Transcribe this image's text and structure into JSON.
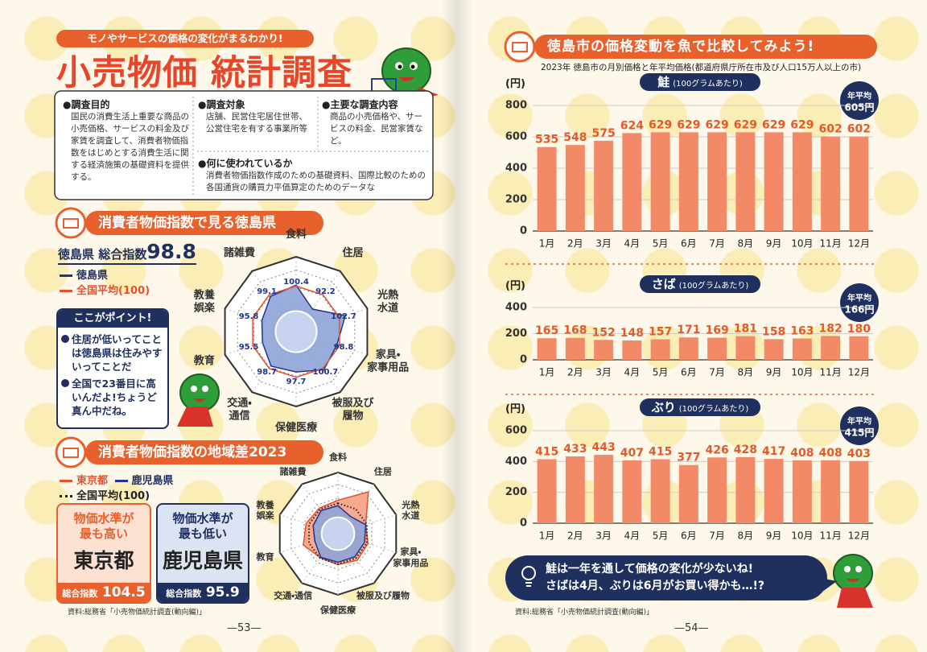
{
  "left": {
    "tagline": "モノやサービスの価格の変化がまるわかり!",
    "title": "小売物価 統計調査",
    "info": [
      {
        "heading": "●調査目的",
        "text": "国民の消費生活上重要な商品の小売価格、サービスの料金及び家賃を調査して、消費者物価指数をはじめとする消費生活に関する経済施策の基礎資料を提供する。"
      },
      {
        "heading": "●調査対象",
        "text": "店舗、民営住宅居住世帯、公営住宅を有する事業所等"
      },
      {
        "heading": "●主要な調査内容",
        "text": "商品の小売価格や、サービスの料金、民営家賃など。"
      },
      {
        "heading": "●何に使われているか",
        "text": "消費者物価指数作成のための基礎資料、国際比較のための各国通貨の購買力平価算定のためのデータな"
      }
    ],
    "section1": "消費者物価指数で見る徳島県",
    "point": {
      "heading": "ここがポイント!",
      "items": [
        "住居が低いってことは徳島県は住みやすいってことだ",
        "全国で23番目に高いんだよ!ちょうど真ん中だね。"
      ]
    },
    "section2": "消費者物価指数の地域差2023",
    "cards": [
      {
        "caption": "物価水準が\n最も高い",
        "region": "東京都",
        "index_label": "総合指数",
        "index": 104.5
      },
      {
        "caption": "物価水準が\n最も低い",
        "region": "鹿児島県",
        "index_label": "総合指数",
        "index": 95.9
      }
    ],
    "source": "資料:総務省「小売物価統計調査(動向編)」",
    "page_number": "—53—"
  },
  "right": {
    "header": "徳島市の価格変動を魚で比較してみよう!",
    "subtitle": "2023年 徳島市の月別価格と年平均価格(都道府県庁所在市及び人口15万人以上の市)",
    "message": "鮭は一年を通して価格の変化が少ないね!\nさばは4月、ぶりは6月がお買い得かも…!?",
    "source": "資料:総務省「小売物価統計調査(動向編)」",
    "page_number": "—54—"
  },
  "chart_data": [
    {
      "type": "radar",
      "total_label": "徳島県 総合指数",
      "total": 98.8,
      "categories": [
        "食料",
        "住居",
        "光熱\n水道",
        "家具・\n家事用品",
        "被服及び\n履物",
        "保健医療",
        "交通・\n通信",
        "教育",
        "教養\n娯楽",
        "諸雑費"
      ],
      "series": [
        {
          "name": "徳島県",
          "color": "#23358a",
          "fill": "#8ea4d8",
          "values": [
            100.4,
            92.2,
            102.7,
            98.8,
            100.7,
            97.7,
            98.7,
            95.5,
            95.8,
            99.1
          ]
        },
        {
          "name": "全国平均(100)",
          "color": "#e8502a",
          "values": [
            100,
            100,
            100,
            100,
            100,
            100,
            100,
            100,
            100,
            100
          ]
        }
      ],
      "rlim": [
        80,
        110
      ]
    },
    {
      "type": "radar",
      "categories": [
        "食料",
        "住居",
        "光熱\n水道",
        "家具・\n家事用品",
        "被服及び履物",
        "保健医療",
        "交通・通信",
        "教育",
        "教養\n娯楽",
        "諸雑費"
      ],
      "series": [
        {
          "name": "東京都",
          "color": "#e8502a",
          "fill": "#f6a184",
          "values": [
            105,
            135,
            98,
            102,
            104,
            101,
            99,
            110,
            105,
            102
          ]
        },
        {
          "name": "鹿児島県",
          "color": "#23358a",
          "fill": "#8ea4d8",
          "values": [
            96,
            85,
            98,
            96,
            97,
            97,
            98,
            90,
            93,
            97
          ]
        },
        {
          "name": "全国平均(100)",
          "color": "#222222",
          "style": "dotted",
          "values": [
            100,
            100,
            100,
            100,
            100,
            100,
            100,
            100,
            100,
            100
          ]
        }
      ],
      "rlim": [
        50,
        140
      ]
    },
    {
      "type": "bar",
      "title": "鮭",
      "subtitle": "(100グラムあたり)",
      "y_label": "(円)",
      "average_label": "年平均",
      "average": "605円",
      "categories": [
        "1月",
        "2月",
        "3月",
        "4月",
        "5月",
        "6月",
        "7月",
        "8月",
        "9月",
        "10月",
        "11月",
        "12月"
      ],
      "values": [
        535,
        548,
        575,
        624,
        629,
        629,
        629,
        629,
        629,
        629,
        602,
        602
      ],
      "color": "#f28a68",
      "label_color": "#e35a26",
      "ylim": [
        0,
        800
      ],
      "yticks": [
        0,
        200,
        400,
        600,
        800
      ],
      "grid": true
    },
    {
      "type": "bar",
      "title": "さば",
      "subtitle": "(100グラムあたり)",
      "y_label": "(円)",
      "average_label": "年平均",
      "average": "166円",
      "categories": [
        "1月",
        "2月",
        "3月",
        "4月",
        "5月",
        "6月",
        "7月",
        "8月",
        "9月",
        "10月",
        "11月",
        "12月"
      ],
      "values": [
        165,
        168,
        152,
        148,
        157,
        171,
        169,
        181,
        158,
        163,
        182,
        180
      ],
      "color": "#f28a68",
      "label_color": "#e35a26",
      "ylim": [
        0,
        400
      ],
      "yticks": [
        0,
        200,
        400
      ],
      "grid": true
    },
    {
      "type": "bar",
      "title": "ぶり",
      "subtitle": "(100グラムあたり)",
      "y_label": "(円)",
      "average_label": "年平均",
      "average": "415円",
      "categories": [
        "1月",
        "2月",
        "3月",
        "4月",
        "5月",
        "6月",
        "7月",
        "8月",
        "9月",
        "10月",
        "11月",
        "12月"
      ],
      "values": [
        415,
        433,
        443,
        407,
        415,
        377,
        426,
        428,
        417,
        408,
        408,
        403
      ],
      "color": "#f28a68",
      "label_color": "#e35a26",
      "ylim": [
        0,
        600
      ],
      "yticks": [
        0,
        200,
        400,
        600
      ],
      "grid": true
    }
  ]
}
